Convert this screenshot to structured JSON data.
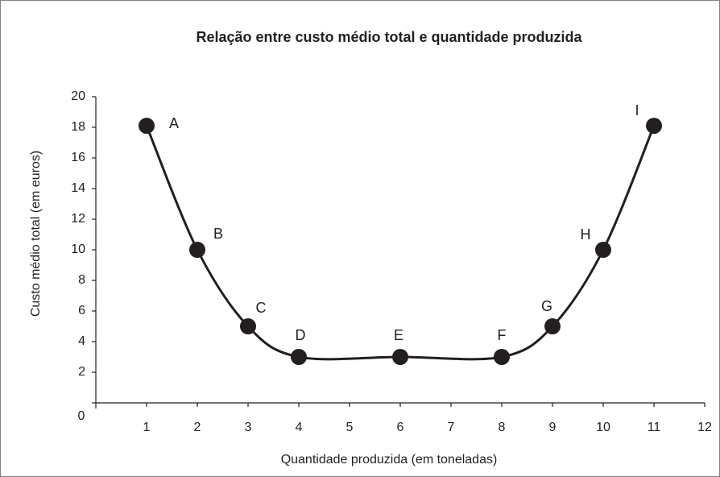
{
  "chart_data": {
    "type": "line",
    "title": "Relação entre custo médio total e quantidade produzida",
    "x_label": "Quantidade produzida (em toneladas)",
    "y_label": "Custo médio total (em euros)",
    "x": [
      1,
      2,
      3,
      4,
      6,
      8,
      9,
      10,
      11
    ],
    "series": [
      {
        "values": [
          18.1,
          10,
          5,
          3,
          3,
          3,
          5,
          10,
          18.1
        ],
        "color": "#231f20"
      }
    ],
    "point_labels": [
      "A",
      "B",
      "C",
      "D",
      "E",
      "F",
      "G",
      "H",
      "I"
    ],
    "xlim": [
      0,
      12
    ],
    "xticks": [
      1,
      2,
      3,
      4,
      5,
      6,
      7,
      8,
      9,
      10,
      11,
      12
    ],
    "ylim": [
      0,
      20
    ],
    "yticks": [
      0,
      2,
      4,
      6,
      8,
      10,
      12,
      14,
      16,
      18,
      20
    ],
    "grid": false,
    "smooth": true
  }
}
